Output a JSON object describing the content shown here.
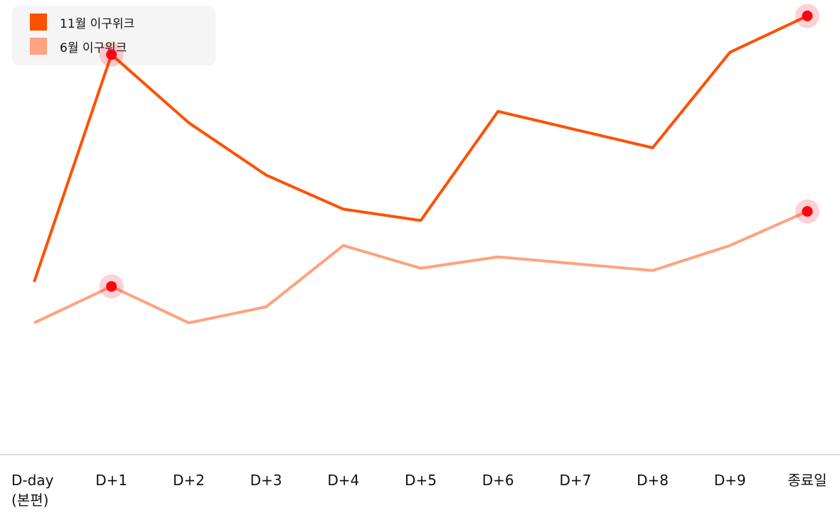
{
  "chart_data": {
    "type": "line",
    "categories": [
      "D-day\n(본편)",
      "D+1",
      "D+2",
      "D+3",
      "D+4",
      "D+5",
      "D+6",
      "D+7",
      "D+8",
      "D+9",
      "종료일"
    ],
    "ylim": [
      0,
      100
    ],
    "grid": false,
    "legend_position": "top-left",
    "series": [
      {
        "name": "11월 이구위크",
        "color": "#ff5000",
        "values": [
          38,
          88,
          73,
          61.5,
          54,
          51.5,
          75.5,
          71.5,
          67.5,
          88.5,
          96.5
        ],
        "highlight": [
          1,
          10
        ]
      },
      {
        "name": "6월 이구위크",
        "color": "#ffa27f",
        "values": [
          29,
          37,
          29,
          32.5,
          46,
          41,
          43.5,
          42,
          40.5,
          46,
          53.5
        ],
        "highlight": [
          1,
          10
        ]
      }
    ],
    "highlight_color": "#ff0012"
  }
}
